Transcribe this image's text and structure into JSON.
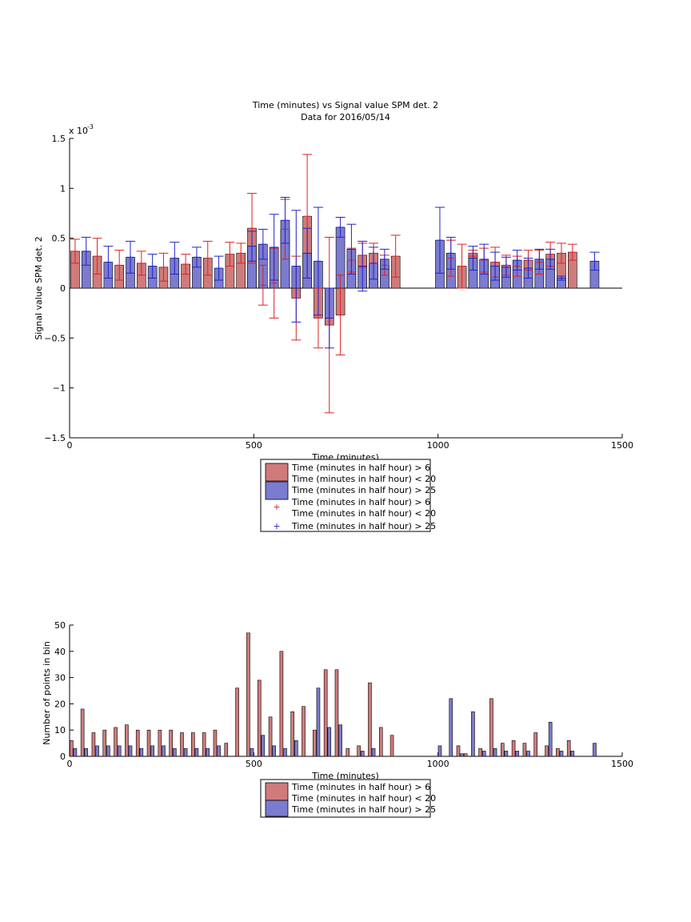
{
  "figure": {
    "title_line1": "Time (minutes) vs Signal value SPM det. 2",
    "title_line2": "Data for 2016/05/14",
    "exponent_label": "x 10",
    "exponent_power": "-3"
  },
  "colors": {
    "red_bar": "#cf7b7b",
    "blue_bar": "#7b7bcf",
    "red_err": "#dd2222",
    "blue_err": "#2222cc",
    "axis": "#000000"
  },
  "legend_top": {
    "entries": [
      {
        "label1": "Time (minutes in half hour) > 6",
        "label2": "Time (minutes in half hour) < 20",
        "marker": "bar",
        "color_key": "red_bar"
      },
      {
        "label1": "Time (minutes in half hour) > 25",
        "label2": "",
        "marker": "bar",
        "color_key": "blue_bar"
      },
      {
        "label1": "Time (minutes in half hour) > 6",
        "label2": "Time (minutes in half hour) < 20",
        "marker": "+",
        "color_key": "red_err"
      },
      {
        "label1": "Time (minutes in half hour) > 25",
        "label2": "",
        "marker": "+",
        "color_key": "blue_err"
      }
    ]
  },
  "legend_bottom": {
    "entries": [
      {
        "label1": "Time (minutes in half hour) > 6",
        "label2": "Time (minutes in half hour) < 20",
        "color_key": "red_bar"
      },
      {
        "label1": "Time (minutes in half hour) > 25",
        "label2": "",
        "color_key": "blue_bar"
      }
    ]
  },
  "chart_data": [
    {
      "type": "bar",
      "title": "Time (minutes) vs Signal value SPM det. 2",
      "subtitle": "Data for 2016/05/14",
      "xlabel": "Time (minutes)",
      "ylabel": "Signal value SPM det. 2",
      "xlim": [
        0,
        1500
      ],
      "ylim": [
        -1.5,
        1.5
      ],
      "y_scale_note": "x 10^-3",
      "xticks": [
        0,
        500,
        1000,
        1500
      ],
      "yticks": [
        -1.5,
        -1,
        -0.5,
        0,
        0.5,
        1,
        1.5
      ],
      "ytick_labels": [
        "−1.5",
        "−1",
        "−0.5",
        "0",
        "0.5",
        "1",
        "1.5"
      ],
      "grid": false,
      "legend_position": "bottom-center outside",
      "series": [
        {
          "name": "Time (minutes in half hour) > 6 / Time (minutes in half hour) < 20",
          "color_key": "red_bar",
          "err_color_key": "red_err",
          "x": [
            15,
            75,
            135,
            195,
            255,
            315,
            375,
            435,
            465,
            495,
            525,
            555,
            585,
            615,
            645,
            675,
            705,
            735,
            765,
            795,
            825,
            855,
            885,
            1035,
            1065,
            1095,
            1125,
            1155,
            1185,
            1215,
            1245,
            1275,
            1305,
            1335,
            1365
          ],
          "y": [
            0.37,
            0.32,
            0.23,
            0.25,
            0.21,
            0.24,
            0.3,
            0.34,
            0.35,
            0.6,
            0.03,
            0.05,
            0.59,
            -0.1,
            0.72,
            -0.3,
            -0.37,
            -0.27,
            0.28,
            0.33,
            0.35,
            0.23,
            0.32,
            0.3,
            0.22,
            0.35,
            0.28,
            0.26,
            0.23,
            0.22,
            0.28,
            0.26,
            0.34,
            0.35,
            0.36
          ],
          "err": [
            0.12,
            0.18,
            0.15,
            0.12,
            0.14,
            0.1,
            0.17,
            0.12,
            0.1,
            0.35,
            0.2,
            0.35,
            0.3,
            0.42,
            0.62,
            0.3,
            0.88,
            0.4,
            0.12,
            0.12,
            0.1,
            0.1,
            0.21,
            0.18,
            0.22,
            0.03,
            0.12,
            0.15,
            0.1,
            0.1,
            0.1,
            0.12,
            0.12,
            0.1,
            0.08
          ]
        },
        {
          "name": "Time (minutes in half hour) > 25",
          "color_key": "blue_bar",
          "err_color_key": "blue_err",
          "x": [
            45,
            105,
            165,
            225,
            285,
            345,
            405,
            495,
            525,
            555,
            585,
            615,
            645,
            675,
            705,
            735,
            765,
            795,
            825,
            855,
            1005,
            1035,
            1095,
            1125,
            1155,
            1185,
            1215,
            1245,
            1275,
            1305,
            1335,
            1425
          ],
          "y": [
            0.37,
            0.26,
            0.31,
            0.22,
            0.3,
            0.31,
            0.2,
            0.42,
            0.44,
            0.41,
            0.68,
            0.22,
            0.35,
            0.27,
            -0.3,
            0.61,
            0.39,
            0.22,
            0.25,
            0.29,
            0.48,
            0.35,
            0.3,
            0.29,
            0.22,
            0.21,
            0.28,
            0.2,
            0.29,
            0.29,
            0.1,
            0.27
          ],
          "err": [
            0.14,
            0.16,
            0.16,
            0.12,
            0.16,
            0.1,
            0.12,
            0.15,
            0.15,
            0.33,
            0.23,
            0.56,
            0.25,
            0.54,
            0.3,
            0.1,
            0.25,
            0.25,
            0.16,
            0.1,
            0.33,
            0.16,
            0.12,
            0.15,
            0.14,
            0.1,
            0.1,
            0.1,
            0.1,
            0.1,
            0.02,
            0.09
          ]
        }
      ]
    },
    {
      "type": "bar",
      "title": "",
      "xlabel": "Time (minutes)",
      "ylabel": "Number of points in bin",
      "xlim": [
        0,
        1500
      ],
      "ylim": [
        0,
        50
      ],
      "xticks": [
        0,
        500,
        1000,
        1500
      ],
      "yticks": [
        0,
        10,
        20,
        30,
        40,
        50
      ],
      "grid": false,
      "legend_position": "bottom-center outside",
      "series": [
        {
          "name": "Time (minutes in half hour) > 6 / Time (minutes in half hour) < 20",
          "color_key": "red_bar",
          "x": [
            5,
            35,
            65,
            95,
            125,
            155,
            185,
            215,
            245,
            275,
            305,
            335,
            365,
            395,
            425,
            455,
            485,
            515,
            545,
            575,
            605,
            635,
            665,
            695,
            725,
            755,
            785,
            815,
            845,
            875,
            1035,
            1055,
            1075,
            1115,
            1145,
            1175,
            1205,
            1235,
            1265,
            1295,
            1325,
            1355
          ],
          "y": [
            6,
            18,
            9,
            10,
            11,
            12,
            10,
            10,
            10,
            10,
            9,
            9,
            9,
            10,
            5,
            26,
            47,
            29,
            15,
            40,
            17,
            19,
            10,
            33,
            33,
            3,
            4,
            28,
            11,
            8,
            1,
            4,
            1,
            3,
            22,
            5,
            6,
            5,
            9,
            4,
            3,
            6
          ]
        },
        {
          "name": "Time (minutes in half hour) > 25",
          "color_key": "blue_bar",
          "x": [
            15,
            45,
            75,
            105,
            135,
            165,
            195,
            225,
            255,
            285,
            315,
            345,
            375,
            405,
            495,
            525,
            555,
            585,
            615,
            675,
            705,
            735,
            795,
            825,
            1005,
            1035,
            1065,
            1095,
            1125,
            1155,
            1185,
            1215,
            1245,
            1305,
            1335,
            1365,
            1425
          ],
          "y": [
            3,
            3,
            4,
            4,
            4,
            4,
            3,
            4,
            4,
            3,
            3,
            3,
            3,
            4,
            3,
            8,
            4,
            3,
            6,
            26,
            11,
            12,
            2,
            3,
            4,
            22,
            1,
            17,
            2,
            3,
            2,
            2,
            2,
            13,
            2,
            2,
            5
          ]
        }
      ]
    }
  ]
}
